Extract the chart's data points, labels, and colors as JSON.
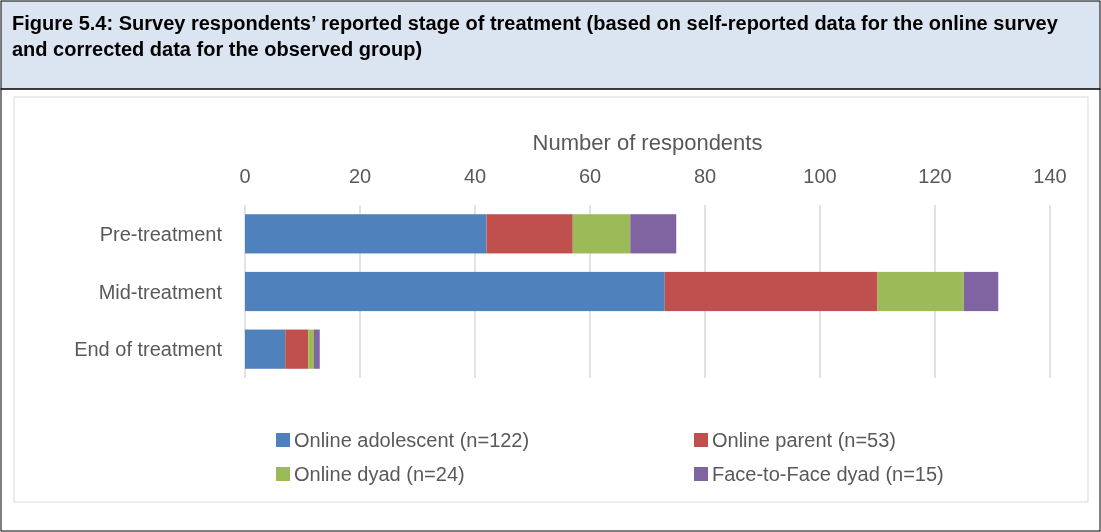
{
  "chart_data": {
    "type": "bar",
    "orientation": "horizontal",
    "stacked": true,
    "title": "Figure 5.4: Survey respondents’ reported stage of treatment (based on self-reported data for the online survey and corrected data for the observed group)",
    "xlabel": "Number of respondents",
    "categories": [
      "Pre-treatment",
      "Mid-treatment",
      "End of treatment"
    ],
    "series": [
      {
        "name": "Online adolescent (n=122)",
        "color": "#4f81bd",
        "values": [
          42,
          73,
          7
        ]
      },
      {
        "name": "Online parent (n=53)",
        "color": "#c0504d",
        "values": [
          15,
          37,
          4
        ]
      },
      {
        "name": "Online dyad (n=24)",
        "color": "#9bbb59",
        "values": [
          10,
          15,
          1
        ]
      },
      {
        "name": "Face-to-Face dyad (n=15)",
        "color": "#8064a2",
        "values": [
          8,
          6,
          1
        ]
      }
    ],
    "xlim": [
      0,
      140
    ],
    "xticks": [
      0,
      20,
      40,
      60,
      80,
      100,
      120,
      140
    ],
    "grid": "x",
    "legend": "bottom"
  }
}
